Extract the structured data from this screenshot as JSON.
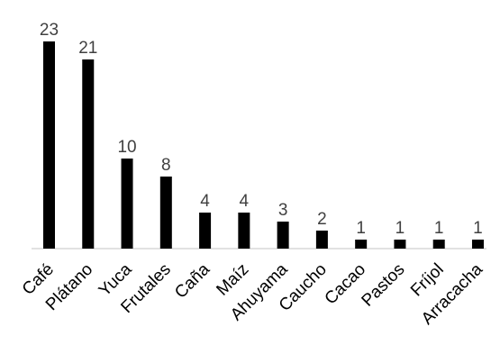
{
  "chart_data": {
    "type": "bar",
    "title": "",
    "xlabel": "",
    "ylabel": "",
    "categories": [
      "Café",
      "Plátano",
      "Yuca",
      "Frutales",
      "Caña",
      "Maíz",
      "Ahuyama",
      "Caucho",
      "Cacao",
      "Pastos",
      "Fríjol",
      "Arracacha"
    ],
    "values": [
      23,
      21,
      10,
      8,
      4,
      4,
      3,
      2,
      1,
      1,
      1,
      1
    ],
    "ylim": [
      0,
      23
    ],
    "grid": false,
    "legend": "none",
    "data_labels": true,
    "bar_color": "#000000",
    "label_color": "#404040",
    "axis_color": "#d9d9d9"
  }
}
